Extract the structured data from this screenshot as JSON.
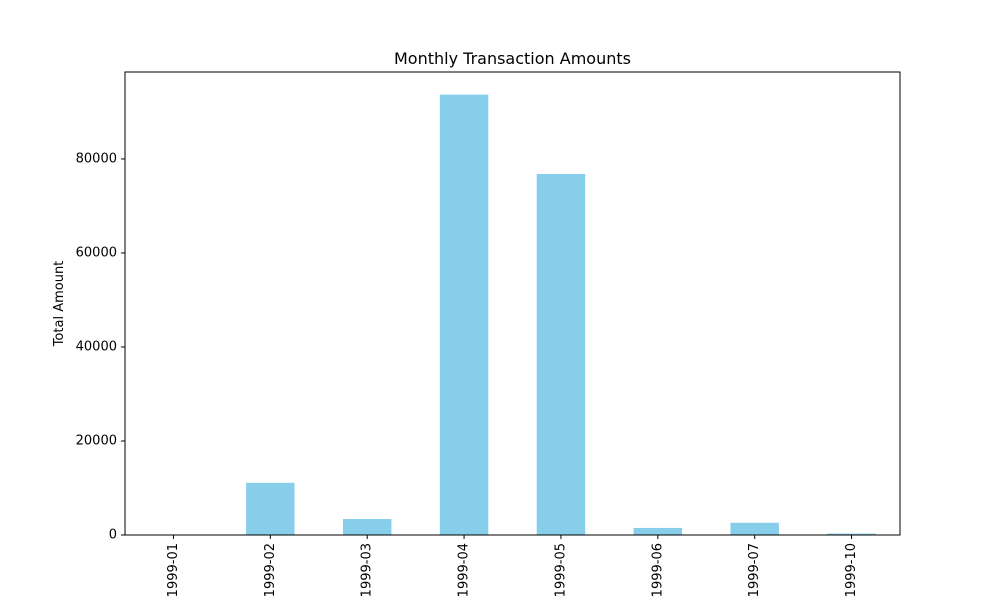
{
  "chart_data": {
    "type": "bar",
    "title": "Monthly Transaction Amounts",
    "xlabel": "",
    "ylabel": "Total Amount",
    "categories": [
      "1999-01",
      "1999-02",
      "1999-03",
      "1999-04",
      "1999-05",
      "1999-06",
      "1999-07",
      "1999-10"
    ],
    "values": [
      80,
      11100,
      3400,
      93700,
      76800,
      1500,
      2600,
      300
    ],
    "ylim": [
      0,
      98500
    ],
    "yticks": [
      0,
      20000,
      40000,
      60000,
      80000
    ],
    "ytick_labels": [
      "0",
      "20000",
      "40000",
      "60000",
      "80000"
    ],
    "grid": false,
    "legend": "none",
    "colors": {
      "bar": "#87CEEB",
      "axis": "#000000",
      "background": "#ffffff"
    }
  }
}
